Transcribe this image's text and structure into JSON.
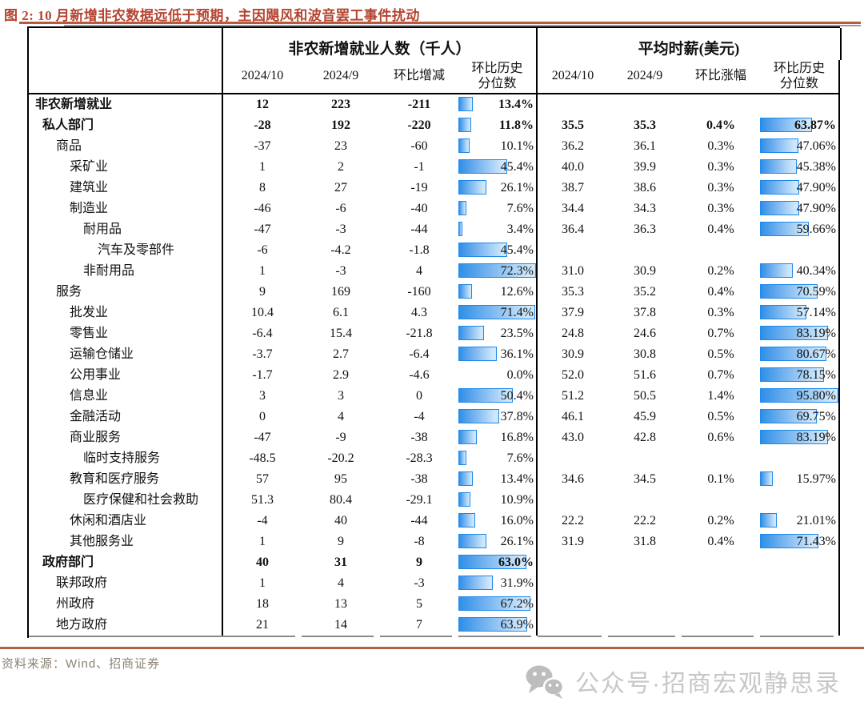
{
  "title": "图 2: 10 月新增非农数据远低于预期，主因飓风和波音罢工事件扰动",
  "source": "资料来源：Wind、招商证券",
  "watermark": {
    "icon": "wechat-icon",
    "text": "公众号·招商宏观静思录"
  },
  "colors": {
    "title_text": "#b5432f",
    "title_rule": "#b95a40",
    "bar_border": "#1f88e9",
    "bar_fill_dark": "#2f8fe6",
    "bar_fill_light": "#cfe8fb",
    "footer_rule": "#b06046",
    "watermark_text": "#c7c7c7",
    "source_text": "#8b8275"
  },
  "chart_data": {
    "type": "table",
    "col_groups": [
      {
        "title": "非农新增就业人数（千人）",
        "columns": [
          "2024/10",
          "2024/9",
          "环比增减",
          "环比历史\n分位数"
        ]
      },
      {
        "title": "平均时薪(美元)",
        "columns": [
          "2024/10",
          "2024/9",
          "环比涨幅",
          "环比历史\n分位数"
        ]
      }
    ],
    "bar_note": "环比历史分位数 cells contain gradient blue data bars scaled to group max (72.3 left, 95.8 right)",
    "rows": [
      {
        "label": "非农新增就业",
        "indent": 0,
        "bold": true,
        "emp": [
          "12",
          "223",
          "-211"
        ],
        "emp_pct": 13.4,
        "emp_pct_label": "13.4%",
        "wage": [
          "",
          "",
          ""
        ],
        "wage_pct": null,
        "wage_pct_label": ""
      },
      {
        "label": "私人部门",
        "indent": 1,
        "bold": true,
        "emp": [
          "-28",
          "192",
          "-220"
        ],
        "emp_pct": 11.8,
        "emp_pct_label": "11.8%",
        "wage": [
          "35.5",
          "35.3",
          "0.4%"
        ],
        "wage_pct": 63.87,
        "wage_pct_label": "63.87%"
      },
      {
        "label": "商品",
        "indent": 2,
        "bold": false,
        "emp": [
          "-37",
          "23",
          "-60"
        ],
        "emp_pct": 10.1,
        "emp_pct_label": "10.1%",
        "wage": [
          "36.2",
          "36.1",
          "0.3%"
        ],
        "wage_pct": 47.06,
        "wage_pct_label": "47.06%"
      },
      {
        "label": "采矿业",
        "indent": 3,
        "bold": false,
        "emp": [
          "1",
          "2",
          "-1"
        ],
        "emp_pct": 45.4,
        "emp_pct_label": "45.4%",
        "wage": [
          "40.0",
          "39.9",
          "0.3%"
        ],
        "wage_pct": 45.38,
        "wage_pct_label": "45.38%"
      },
      {
        "label": "建筑业",
        "indent": 3,
        "bold": false,
        "emp": [
          "8",
          "27",
          "-19"
        ],
        "emp_pct": 26.1,
        "emp_pct_label": "26.1%",
        "wage": [
          "38.7",
          "38.6",
          "0.3%"
        ],
        "wage_pct": 47.9,
        "wage_pct_label": "47.90%"
      },
      {
        "label": "制造业",
        "indent": 3,
        "bold": false,
        "emp": [
          "-46",
          "-6",
          "-40"
        ],
        "emp_pct": 7.6,
        "emp_pct_label": "7.6%",
        "wage": [
          "34.4",
          "34.3",
          "0.3%"
        ],
        "wage_pct": 47.9,
        "wage_pct_label": "47.90%"
      },
      {
        "label": "耐用品",
        "indent": 4,
        "bold": false,
        "emp": [
          "-47",
          "-3",
          "-44"
        ],
        "emp_pct": 3.4,
        "emp_pct_label": "3.4%",
        "wage": [
          "36.4",
          "36.3",
          "0.4%"
        ],
        "wage_pct": 59.66,
        "wage_pct_label": "59.66%"
      },
      {
        "label": "汽车及零部件",
        "indent": 5,
        "bold": false,
        "emp": [
          "-6",
          "-4.2",
          "-1.8"
        ],
        "emp_pct": 45.4,
        "emp_pct_label": "45.4%",
        "wage": [
          "",
          "",
          ""
        ],
        "wage_pct": null,
        "wage_pct_label": ""
      },
      {
        "label": "非耐用品",
        "indent": 4,
        "bold": false,
        "emp": [
          "1",
          "-3",
          "4"
        ],
        "emp_pct": 72.3,
        "emp_pct_label": "72.3%",
        "wage": [
          "31.0",
          "30.9",
          "0.2%"
        ],
        "wage_pct": 40.34,
        "wage_pct_label": "40.34%"
      },
      {
        "label": "服务",
        "indent": 2,
        "bold": false,
        "emp": [
          "9",
          "169",
          "-160"
        ],
        "emp_pct": 12.6,
        "emp_pct_label": "12.6%",
        "wage": [
          "35.3",
          "35.2",
          "0.4%"
        ],
        "wage_pct": 70.59,
        "wage_pct_label": "70.59%"
      },
      {
        "label": "批发业",
        "indent": 3,
        "bold": false,
        "emp": [
          "10.4",
          "6.1",
          "4.3"
        ],
        "emp_pct": 71.4,
        "emp_pct_label": "71.4%",
        "wage": [
          "37.9",
          "37.8",
          "0.3%"
        ],
        "wage_pct": 57.14,
        "wage_pct_label": "57.14%"
      },
      {
        "label": "零售业",
        "indent": 3,
        "bold": false,
        "emp": [
          "-6.4",
          "15.4",
          "-21.8"
        ],
        "emp_pct": 23.5,
        "emp_pct_label": "23.5%",
        "wage": [
          "24.8",
          "24.6",
          "0.7%"
        ],
        "wage_pct": 83.19,
        "wage_pct_label": "83.19%"
      },
      {
        "label": "运输仓储业",
        "indent": 3,
        "bold": false,
        "emp": [
          "-3.7",
          "2.7",
          "-6.4"
        ],
        "emp_pct": 36.1,
        "emp_pct_label": "36.1%",
        "wage": [
          "30.9",
          "30.8",
          "0.5%"
        ],
        "wage_pct": 80.67,
        "wage_pct_label": "80.67%"
      },
      {
        "label": "公用事业",
        "indent": 3,
        "bold": false,
        "emp": [
          "-1.7",
          "2.9",
          "-4.6"
        ],
        "emp_pct": 0.0,
        "emp_pct_label": "0.0%",
        "wage": [
          "52.0",
          "51.6",
          "0.7%"
        ],
        "wage_pct": 78.15,
        "wage_pct_label": "78.15%"
      },
      {
        "label": "信息业",
        "indent": 3,
        "bold": false,
        "emp": [
          "3",
          "3",
          "0"
        ],
        "emp_pct": 50.4,
        "emp_pct_label": "50.4%",
        "wage": [
          "51.2",
          "50.5",
          "1.4%"
        ],
        "wage_pct": 95.8,
        "wage_pct_label": "95.80%"
      },
      {
        "label": "金融活动",
        "indent": 3,
        "bold": false,
        "emp": [
          "0",
          "4",
          "-4"
        ],
        "emp_pct": 37.8,
        "emp_pct_label": "37.8%",
        "wage": [
          "46.1",
          "45.9",
          "0.5%"
        ],
        "wage_pct": 69.75,
        "wage_pct_label": "69.75%"
      },
      {
        "label": "商业服务",
        "indent": 3,
        "bold": false,
        "emp": [
          "-47",
          "-9",
          "-38"
        ],
        "emp_pct": 16.8,
        "emp_pct_label": "16.8%",
        "wage": [
          "43.0",
          "42.8",
          "0.6%"
        ],
        "wage_pct": 83.19,
        "wage_pct_label": "83.19%"
      },
      {
        "label": "临时支持服务",
        "indent": 4,
        "bold": false,
        "emp": [
          "-48.5",
          "-20.2",
          "-28.3"
        ],
        "emp_pct": 7.6,
        "emp_pct_label": "7.6%",
        "wage": [
          "",
          "",
          ""
        ],
        "wage_pct": null,
        "wage_pct_label": ""
      },
      {
        "label": "教育和医疗服务",
        "indent": 3,
        "bold": false,
        "emp": [
          "57",
          "95",
          "-38"
        ],
        "emp_pct": 13.4,
        "emp_pct_label": "13.4%",
        "wage": [
          "34.6",
          "34.5",
          "0.1%"
        ],
        "wage_pct": 15.97,
        "wage_pct_label": "15.97%"
      },
      {
        "label": "医疗保健和社会救助",
        "indent": 4,
        "bold": false,
        "emp": [
          "51.3",
          "80.4",
          "-29.1"
        ],
        "emp_pct": 10.9,
        "emp_pct_label": "10.9%",
        "wage": [
          "",
          "",
          ""
        ],
        "wage_pct": null,
        "wage_pct_label": ""
      },
      {
        "label": "休闲和酒店业",
        "indent": 3,
        "bold": false,
        "emp": [
          "-4",
          "40",
          "-44"
        ],
        "emp_pct": 16.0,
        "emp_pct_label": "16.0%",
        "wage": [
          "22.2",
          "22.2",
          "0.2%"
        ],
        "wage_pct": 21.01,
        "wage_pct_label": "21.01%"
      },
      {
        "label": "其他服务业",
        "indent": 3,
        "bold": false,
        "emp": [
          "1",
          "9",
          "-8"
        ],
        "emp_pct": 26.1,
        "emp_pct_label": "26.1%",
        "wage": [
          "31.9",
          "31.8",
          "0.4%"
        ],
        "wage_pct": 71.43,
        "wage_pct_label": "71.43%"
      },
      {
        "label": "政府部门",
        "indent": 1,
        "bold": true,
        "emp": [
          "40",
          "31",
          "9"
        ],
        "emp_pct": 63.0,
        "emp_pct_label": "63.0%",
        "wage": [
          "",
          "",
          ""
        ],
        "wage_pct": null,
        "wage_pct_label": ""
      },
      {
        "label": "联邦政府",
        "indent": 2,
        "bold": false,
        "emp": [
          "1",
          "4",
          "-3"
        ],
        "emp_pct": 31.9,
        "emp_pct_label": "31.9%",
        "wage": [
          "",
          "",
          ""
        ],
        "wage_pct": null,
        "wage_pct_label": ""
      },
      {
        "label": "州政府",
        "indent": 2,
        "bold": false,
        "emp": [
          "18",
          "13",
          "5"
        ],
        "emp_pct": 67.2,
        "emp_pct_label": "67.2%",
        "wage": [
          "",
          "",
          ""
        ],
        "wage_pct": null,
        "wage_pct_label": ""
      },
      {
        "label": "地方政府",
        "indent": 2,
        "bold": false,
        "emp": [
          "21",
          "14",
          "7"
        ],
        "emp_pct": 63.9,
        "emp_pct_label": "63.9%",
        "wage": [
          "",
          "",
          ""
        ],
        "wage_pct": null,
        "wage_pct_label": ""
      }
    ]
  }
}
